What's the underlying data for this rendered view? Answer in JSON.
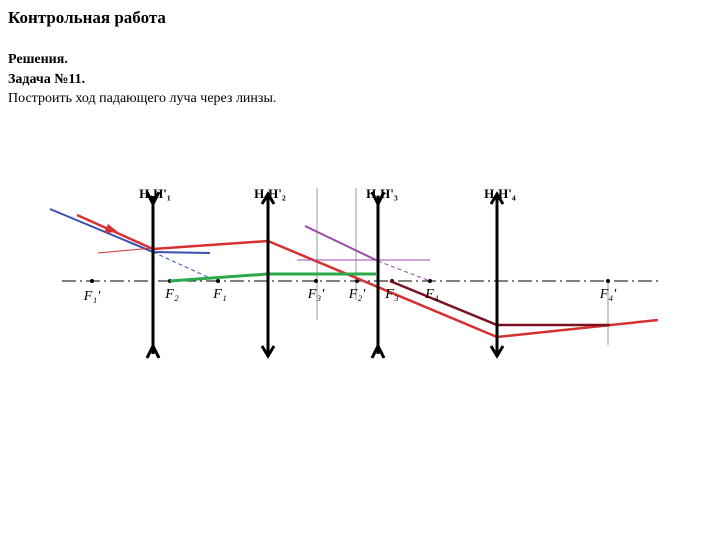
{
  "header": {
    "title": "Контрольная работа",
    "subtitle": "Решения.",
    "task": "Задача №11.",
    "text": "Построить ход падающего луча через линзы."
  },
  "diagram": {
    "lenses": [
      "H₁H'₁",
      "H₂H'₂",
      "H₃H'₃",
      "H₄H'₄"
    ],
    "foci": [
      "F₁'",
      "F₂",
      "F₁",
      "F₃'",
      "F₂'",
      "F₃",
      "F₄",
      "F₄'"
    ]
  }
}
